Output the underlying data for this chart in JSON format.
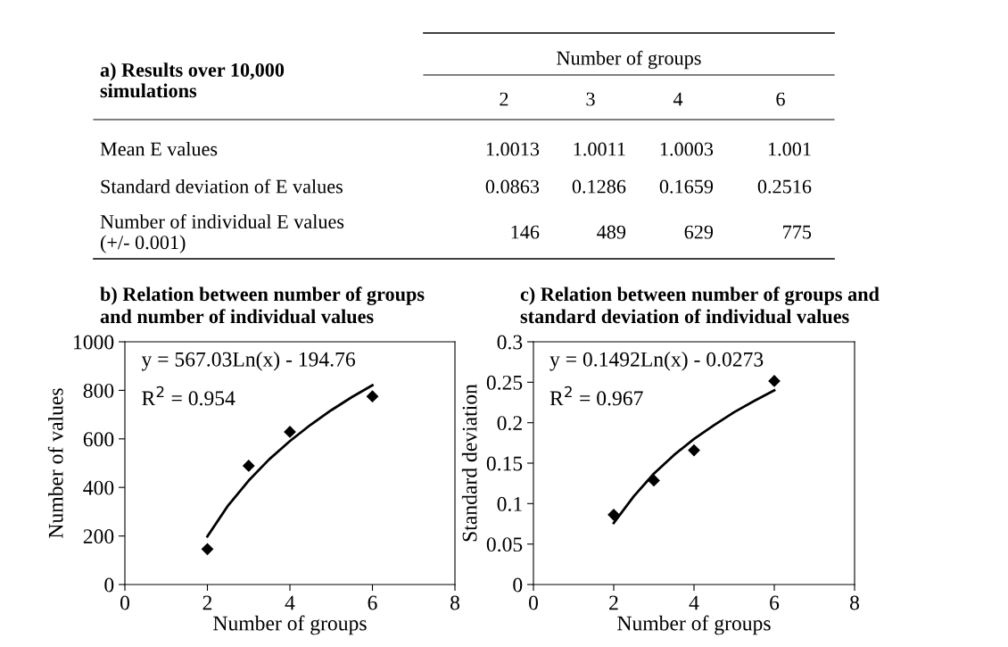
{
  "chart_data": [
    {
      "type": "other",
      "title": "a) Results over 10,000\nsimulations",
      "xlabel": "Number of groups",
      "categories": [
        "2",
        "3",
        "4",
        "6"
      ],
      "y_categories": [
        "Mean E values",
        "Standard deviation of E values",
        "Number of individual E values\n(+/- 0.001)"
      ],
      "cell_labels": [
        [
          "1.0013",
          "1.0011",
          "1.0003",
          "1.001"
        ],
        [
          "0.0863",
          "0.1286",
          "0.1659",
          "0.2516"
        ],
        [
          "146",
          "489",
          "629",
          "775"
        ]
      ]
    },
    {
      "type": "scatter",
      "title": "b) Relation between number of groups\nand number of individual values",
      "xlabel": "Number of groups",
      "ylabel": "Number of values",
      "xlim": [
        0,
        8
      ],
      "xticks": [
        0,
        2,
        4,
        6,
        8
      ],
      "ylim": [
        0,
        1000
      ],
      "yticks": [
        0,
        200,
        400,
        600,
        800,
        1000
      ],
      "grid": false,
      "legend": false,
      "annotations": [
        "y = 567.03Ln(x) - 194.76",
        "R$^{2}$ = 0.954"
      ],
      "series": [
        {
          "type": "scatter",
          "marker": "diamond",
          "color": "#000000",
          "x": [
            2,
            3,
            4,
            6
          ],
          "values": [
            146,
            489,
            629,
            775
          ]
        },
        {
          "type": "line",
          "color": "#000000",
          "x": [
            2,
            2.5,
            3,
            3.5,
            4,
            4.5,
            5,
            5.5,
            6
          ],
          "values": [
            198,
            325,
            428,
            516,
            591,
            658,
            718,
            772,
            821
          ]
        }
      ]
    },
    {
      "type": "scatter",
      "title": "c) Relation between number of groups and\nstandard deviation of individual values",
      "xlabel": "Number of groups",
      "ylabel": "Standard deviation",
      "xlim": [
        0,
        8
      ],
      "xticks": [
        0,
        2,
        4,
        6,
        8
      ],
      "ylim": [
        0,
        0.3
      ],
      "yticks": [
        0,
        0.05,
        0.1,
        0.15,
        0.2,
        0.25,
        0.3
      ],
      "grid": false,
      "legend": false,
      "annotations": [
        "y = 0.1492Ln(x) - 0.0273",
        "R$^{2}$ = 0.967"
      ],
      "series": [
        {
          "type": "scatter",
          "marker": "diamond",
          "color": "#000000",
          "x": [
            2,
            3,
            4,
            6
          ],
          "values": [
            0.0863,
            0.1286,
            0.1659,
            0.2516
          ]
        },
        {
          "type": "line",
          "color": "#000000",
          "x": [
            2,
            2.5,
            3,
            3.5,
            4,
            4.5,
            5,
            5.5,
            6
          ],
          "values": [
            0.076,
            0.109,
            0.137,
            0.16,
            0.18,
            0.197,
            0.213,
            0.227,
            0.24
          ]
        }
      ]
    }
  ]
}
